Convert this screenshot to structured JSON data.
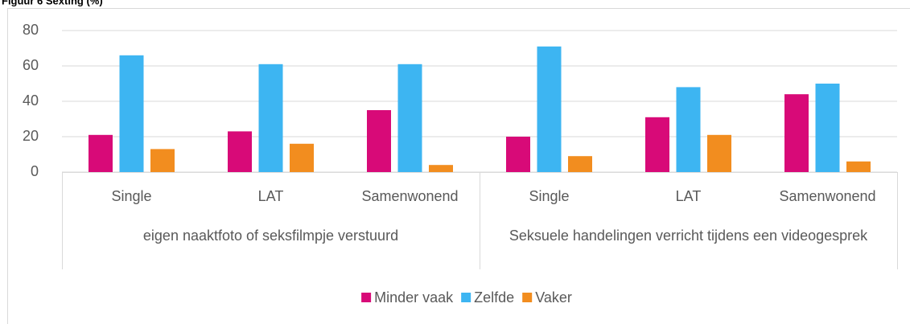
{
  "chart_data": {
    "type": "bar",
    "title": "Figuur 6 Sexting (%)",
    "groups": [
      {
        "name": "eigen naaktfoto of seksfilmpje verstuurd",
        "categories": [
          "Single",
          "LAT",
          "Samenwonend"
        ]
      },
      {
        "name": "Seksuele handelingen verricht tijdens een videogesprek",
        "categories": [
          "Single",
          "LAT",
          "Samenwonend"
        ]
      }
    ],
    "series": [
      {
        "name": "Minder vaak",
        "color": "#d80a78",
        "values": [
          21,
          23,
          35,
          20,
          31,
          44
        ]
      },
      {
        "name": "Zelfde",
        "color": "#3db5f2",
        "values": [
          66,
          61,
          61,
          71,
          48,
          50
        ]
      },
      {
        "name": "Vaker",
        "color": "#f28d1f",
        "values": [
          13,
          16,
          4,
          9,
          21,
          6
        ]
      }
    ],
    "ylim": [
      0,
      80
    ],
    "yticks": [
      0,
      20,
      40,
      60,
      80
    ],
    "grid": true,
    "legend": "bottom"
  }
}
